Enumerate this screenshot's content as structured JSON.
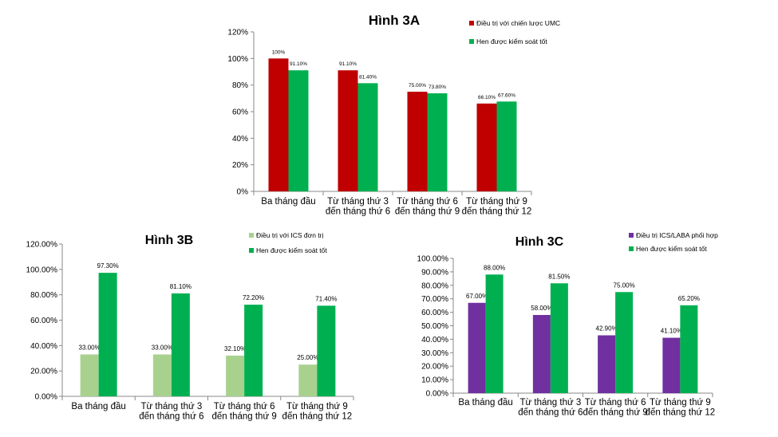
{
  "chart_data": [
    {
      "type": "bar",
      "title": "Hình 3A",
      "categories": [
        [
          "Ba tháng đầu"
        ],
        [
          "Từ tháng thứ 3",
          "đến tháng thứ 6"
        ],
        [
          "Từ tháng thứ 6",
          "đến tháng thứ 9"
        ],
        [
          "Từ tháng thứ 9",
          "đến tháng thứ 12"
        ]
      ],
      "ylim": [
        0,
        120
      ],
      "yticks": [
        0,
        20,
        40,
        60,
        80,
        100,
        120
      ],
      "ytick_labels": [
        "0%",
        "20%",
        "40%",
        "60%",
        "80%",
        "100%",
        "120%"
      ],
      "series": [
        {
          "name": "Điều trị với chiến lược UMC",
          "color": "#c00000",
          "values": [
            100,
            91.1,
            75.0,
            66.1
          ],
          "labels": [
            "100%",
            "91.10%",
            "75.00%",
            "66.10%"
          ]
        },
        {
          "name": "Hen được kiểm soát tốt",
          "color": "#00b050",
          "values": [
            91.1,
            81.4,
            73.8,
            67.6
          ],
          "labels": [
            "91.10%",
            "81.40%",
            "73.80%",
            "67.60%"
          ]
        }
      ],
      "legend": "right"
    },
    {
      "type": "bar",
      "title": "Hình 3B",
      "categories": [
        [
          "Ba tháng đầu"
        ],
        [
          "Từ tháng thứ 3",
          "đến tháng thứ 6"
        ],
        [
          "Từ tháng thứ 6",
          "đến tháng thứ 9"
        ],
        [
          "Từ tháng thứ 9",
          "đến tháng thứ 12"
        ]
      ],
      "ylim": [
        0,
        120
      ],
      "yticks": [
        0,
        20,
        40,
        60,
        80,
        100,
        120
      ],
      "ytick_labels": [
        "0.00%",
        "20.00%",
        "40.00%",
        "60.00%",
        "80.00%",
        "100.00%",
        "120.00%"
      ],
      "series": [
        {
          "name": "Điều trị với ICS đơn trị",
          "color": "#a9d18e",
          "values": [
            33.0,
            33.0,
            32.1,
            25.0
          ],
          "labels": [
            "33.00%",
            "33.00%",
            "32.10%",
            "25.00%"
          ]
        },
        {
          "name": "Hen được kiểm soát tốt",
          "color": "#00b050",
          "values": [
            97.3,
            81.1,
            72.2,
            71.4
          ],
          "labels": [
            "97.30%",
            "81.10%",
            "72.20%",
            "71.40%"
          ]
        }
      ],
      "legend": "top-right"
    },
    {
      "type": "bar",
      "title": "Hình 3C",
      "categories": [
        [
          "Ba tháng đầu"
        ],
        [
          "Từ tháng thứ 3",
          "đến tháng thứ 6"
        ],
        [
          "Từ tháng thứ 6",
          "đến tháng thứ 9"
        ],
        [
          "Từ tháng thứ 9",
          "đến tháng thứ 12"
        ]
      ],
      "ylim": [
        0,
        100
      ],
      "yticks": [
        0,
        10,
        20,
        30,
        40,
        50,
        60,
        70,
        80,
        90,
        100
      ],
      "ytick_labels": [
        "0.00%",
        "10.00%",
        "20.00%",
        "30.00%",
        "40.00%",
        "50.00%",
        "60.00%",
        "70.00%",
        "80.00%",
        "90.00%",
        "100.00%"
      ],
      "series": [
        {
          "name": "Điều trị ICS/LABA phối hợp",
          "color": "#7030a0",
          "values": [
            67.0,
            58.0,
            42.9,
            41.1
          ],
          "labels": [
            "67.00%",
            "58.00%",
            "42.90%",
            "41.10%"
          ]
        },
        {
          "name": "Hen được kiểm soát tốt",
          "color": "#00b050",
          "values": [
            88.0,
            81.5,
            75.0,
            65.2
          ],
          "labels": [
            "88.00%",
            "81.50%",
            "75.00%",
            "65.20%"
          ]
        }
      ],
      "legend": "top-right"
    }
  ]
}
